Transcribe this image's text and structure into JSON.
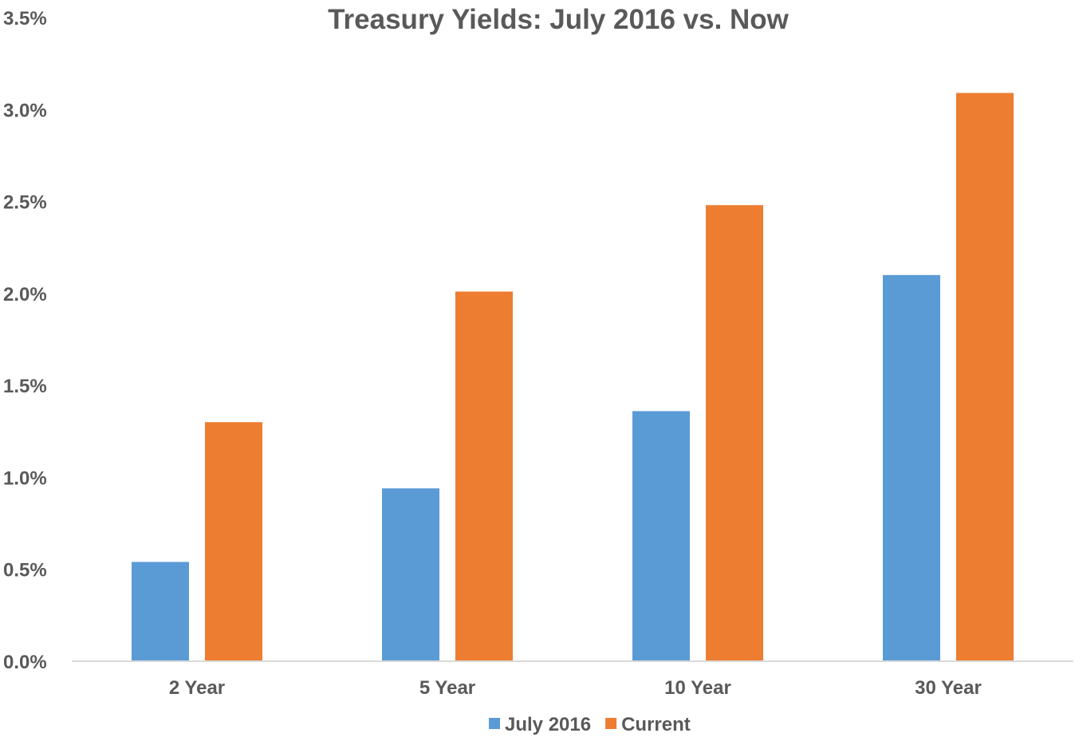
{
  "chart_data": {
    "type": "bar",
    "title": "Treasury Yields: July 2016 vs. Now",
    "xlabel": "",
    "ylabel": "",
    "categories": [
      "2 Year",
      "5 Year",
      "10 Year",
      "30 Year"
    ],
    "series": [
      {
        "name": "July 2016",
        "values": [
          0.54,
          0.94,
          1.36,
          2.1
        ],
        "color": "#5b9bd5"
      },
      {
        "name": "Current",
        "values": [
          1.3,
          2.01,
          2.48,
          3.09
        ],
        "color": "#ed7d31"
      }
    ],
    "ylim": [
      0,
      3.5
    ],
    "yticks": [
      0,
      0.5,
      1.0,
      1.5,
      2.0,
      2.5,
      3.0,
      3.5
    ],
    "ytick_labels": [
      "0.0%",
      "0.5%",
      "1.0%",
      "1.5%",
      "2.0%",
      "2.5%",
      "3.0%",
      "3.5%"
    ],
    "grid": false,
    "legend_position": "bottom",
    "axis_color": "#d9d9d9",
    "text_color": "#595959"
  }
}
